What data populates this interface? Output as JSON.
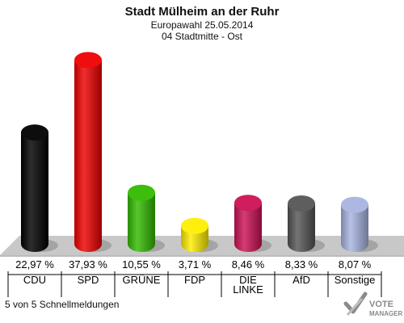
{
  "header": {
    "title": "Stadt Mülheim an der Ruhr",
    "subtitle": "Europawahl 25.05.2014",
    "district": "04 Stadtmitte - Ost"
  },
  "footer": {
    "status": "5 von 5 Schnellmeldungen",
    "logo_line1": "VOTE",
    "logo_line2": "MANAGER"
  },
  "chart_data": {
    "type": "bar",
    "categories": [
      "CDU",
      "SPD",
      "GRÜNE",
      "FDP",
      "DIE LINKE",
      "AfD",
      "Sonstige"
    ],
    "category_lines": [
      [
        "CDU"
      ],
      [
        "SPD"
      ],
      [
        "GRÜNE"
      ],
      [
        "FDP"
      ],
      [
        "DIE",
        "LINKE"
      ],
      [
        "AfD"
      ],
      [
        "Sonstige"
      ]
    ],
    "values": [
      22.97,
      37.93,
      10.55,
      3.71,
      8.46,
      8.33,
      8.07
    ],
    "value_labels": [
      "22,97 %",
      "37,93 %",
      "10,55 %",
      "3,71 %",
      "8,46 %",
      "8,33 %",
      "8,07 %"
    ],
    "colors": [
      "#000000",
      "#ee0000",
      "#33bb00",
      "#ffee00",
      "#cc1155",
      "#555555",
      "#a8b4e0"
    ],
    "ylim": [
      0,
      40
    ],
    "grid": false
  }
}
